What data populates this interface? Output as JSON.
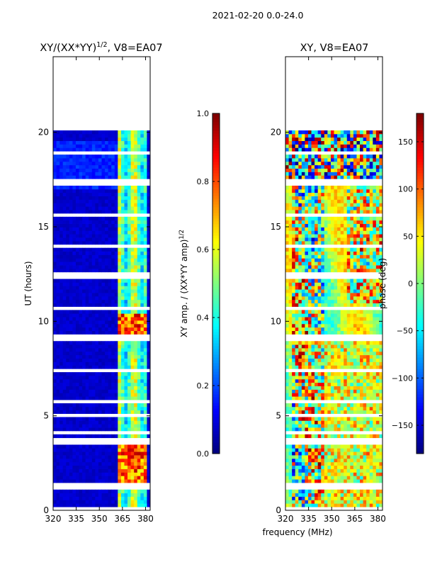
{
  "chart_data": {
    "suptitle": "2021-02-20 0.0-24.0",
    "xlabel": "frequency (MHz)",
    "panels": [
      {
        "type": "heatmap",
        "title_main": "XY/(XX*YY)",
        "title_sup": "1/2",
        "title_tail": ", V8=EA07",
        "xlim": [
          320,
          383
        ],
        "ylim": [
          0,
          24
        ],
        "xticks": [
          320,
          335,
          350,
          365,
          380
        ],
        "yticks": [
          0,
          5,
          10,
          15,
          20
        ],
        "ylabel": "UT (hours)",
        "data_end_hour": 20.1,
        "quantity": "amplitude",
        "colorbar": {
          "label_main": "XY amp. / (XX*YY amp)",
          "label_sup": "1/2",
          "range": [
            0.0,
            1.0
          ],
          "ticks": [
            "0.0",
            "0.2",
            "0.4",
            "0.6",
            "0.8",
            "1.0"
          ]
        }
      },
      {
        "type": "heatmap",
        "title_main": "XY, V8=EA07",
        "xlim": [
          320,
          383
        ],
        "ylim": [
          0,
          24
        ],
        "xticks": [
          320,
          335,
          350,
          365,
          380
        ],
        "yticks": [
          0,
          5,
          10,
          15,
          20
        ],
        "data_end_hour": 20.1,
        "quantity": "phase",
        "colorbar": {
          "label_main": "phase (deg)",
          "range": [
            -180,
            180
          ],
          "ticks": [
            "-150",
            "-100",
            "-50",
            "0",
            "50",
            "100",
            "150"
          ]
        }
      }
    ],
    "colormap": "jet",
    "blank_hour_bands": [
      [
        0.05,
        0.12
      ],
      [
        1.12,
        1.22
      ],
      [
        1.33,
        1.38
      ],
      [
        3.55,
        3.75
      ],
      [
        5.0,
        5.06
      ],
      [
        9.0,
        9.25
      ],
      [
        12.4,
        12.65
      ],
      [
        17.1,
        17.15
      ],
      [
        17.4,
        17.5
      ],
      [
        18.05,
        18.15
      ],
      [
        18.55,
        18.6
      ],
      [
        19.0,
        19.05
      ]
    ]
  }
}
